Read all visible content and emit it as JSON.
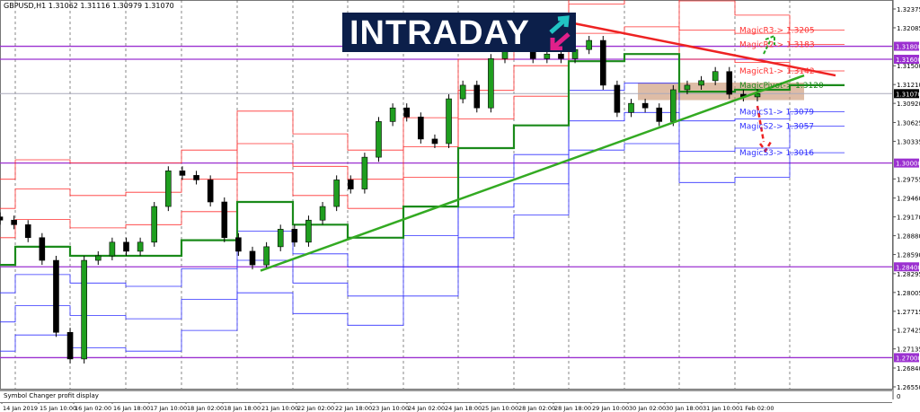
{
  "header": {
    "symbol_info": "GBPUSD,H1  1.31062 1.31116 1.30979 1.31070"
  },
  "logo": {
    "text": "INTRADAY"
  },
  "subwindow": {
    "label": "Symbol Changer profit display",
    "axis_value": "0"
  },
  "colors": {
    "resistance": "#ff3030",
    "support": "#3030ff",
    "pivot": "#1a8a1a",
    "key_level": "#9b30d0",
    "current_price": "#000000",
    "trend_up": "#33aa22",
    "trend_down": "#ee2222",
    "zone": "#c8906a",
    "logo_bg": "#0c1f4a"
  },
  "chart_data": {
    "type": "candlestick",
    "symbol": "GBPUSD",
    "timeframe": "H1",
    "ylim": [
      1.2655,
      1.32375
    ],
    "grid": false,
    "price_ticks": [
      "1.32375",
      "1.32085",
      "1.31500",
      "1.31210",
      "1.30920",
      "1.30625",
      "1.30335",
      "1.29755",
      "1.29460",
      "1.29170",
      "1.28880",
      "1.28590",
      "1.28295",
      "1.28005",
      "1.27715",
      "1.27425",
      "1.27135",
      "1.26840",
      "1.26550"
    ],
    "time_ticks": [
      "14 Jan 2019",
      "15 Jan 10:00",
      "16 Jan 02:00",
      "16 Jan 18:00",
      "17 Jan 10:00",
      "18 Jan 02:00",
      "18 Jan 18:00",
      "21 Jan 10:00",
      "22 Jan 02:00",
      "22 Jan 18:00",
      "23 Jan 10:00",
      "24 Jan 02:00",
      "24 Jan 18:00",
      "25 Jan 10:00",
      "28 Jan 02:00",
      "28 Jan 18:00",
      "29 Jan 10:00",
      "30 Jan 02:00",
      "30 Jan 18:00",
      "31 Jan 10:00",
      "1 Feb 02:00"
    ],
    "close": [
      1.2912,
      1.2905,
      1.2885,
      1.285,
      1.2739,
      1.2698,
      1.285,
      1.2857,
      1.2878,
      1.2864,
      1.2878,
      1.2933,
      1.2988,
      1.2981,
      1.2974,
      1.294,
      1.2885,
      1.2864,
      1.2843,
      1.2871,
      1.2898,
      1.2878,
      1.2912,
      1.2933,
      1.2974,
      1.296,
      1.3009,
      1.3064,
      1.3085,
      1.3071,
      1.3037,
      1.303,
      1.3099,
      1.312,
      1.3085,
      1.3161,
      1.3196,
      1.3182,
      1.3161,
      1.3168,
      1.3161,
      1.3175,
      1.3189,
      1.312,
      1.3078,
      1.3092,
      1.3085,
      1.3064,
      1.3113,
      1.312,
      1.3127,
      1.3141,
      1.3106,
      1.3102,
      1.3107
    ],
    "current_price": {
      "value": 1.3107,
      "label": "1.31070"
    },
    "key_levels": [
      {
        "value": 1.318,
        "label": "1.31800"
      },
      {
        "value": 1.316,
        "label": "1.31600"
      },
      {
        "value": 1.3,
        "label": "1.30000"
      },
      {
        "value": 1.284,
        "label": "1.28400"
      },
      {
        "value": 1.27,
        "label": "1.27000"
      }
    ],
    "daily_pivots": {
      "pivot": [
        1.2843,
        1.2871,
        1.2857,
        1.2857,
        1.2881,
        1.294,
        1.2905,
        1.2885,
        1.2933,
        1.3023,
        1.3058,
        1.3157,
        1.3168,
        1.311,
        1.3113,
        1.312
      ],
      "r1": [
        1.2885,
        1.2913,
        1.29,
        1.2905,
        1.2925,
        1.2985,
        1.295,
        1.293,
        1.2978,
        1.3068,
        1.3103,
        1.32,
        1.321,
        1.316,
        1.3155,
        1.3142
      ],
      "r2": [
        1.293,
        1.296,
        1.295,
        1.2955,
        1.2975,
        1.303,
        1.2995,
        1.2975,
        1.3025,
        1.3112,
        1.315,
        1.3245,
        1.3255,
        1.3205,
        1.32,
        1.3183
      ],
      "r3": [
        1.2975,
        1.3005,
        1.3,
        1.3,
        1.302,
        1.308,
        1.3045,
        1.302,
        1.307,
        1.316,
        1.3195,
        1.329,
        1.33,
        1.325,
        1.3228,
        1.3205
      ],
      "s1": [
        1.28,
        1.2828,
        1.2815,
        1.281,
        1.2837,
        1.2895,
        1.286,
        1.284,
        1.2888,
        1.2978,
        1.3013,
        1.3112,
        1.3123,
        1.3065,
        1.3068,
        1.3079
      ],
      "s2": [
        1.2755,
        1.278,
        1.2765,
        1.276,
        1.279,
        1.285,
        1.2815,
        1.2795,
        1.284,
        1.2932,
        1.2968,
        1.3065,
        1.3078,
        1.3018,
        1.3023,
        1.3057
      ],
      "s3": [
        1.271,
        1.2735,
        1.2715,
        1.271,
        1.2742,
        1.28,
        1.2768,
        1.275,
        1.2795,
        1.2885,
        1.292,
        1.302,
        1.303,
        1.297,
        1.2978,
        1.3016
      ]
    },
    "pivot_labels": {
      "r3": "MagicR3-> 1.3205",
      "r2": "MagicR2-> 1.3183",
      "r1": "MagicR1-> 1.3142",
      "pivot": "MagicPivot-> 1.3120",
      "s1": "MagicS1-> 1.3079",
      "s2": "MagicS2-> 1.3057",
      "s3": "MagicS3-> 1.3016"
    },
    "trendlines": [
      {
        "type": "support",
        "from": [
          1.2834
        ],
        "to": [
          1.3135
        ]
      },
      {
        "type": "resistance",
        "from": [
          1.3215
        ],
        "to": [
          1.3135
        ]
      }
    ],
    "zone": {
      "top": 1.3124,
      "bottom": 1.3097
    }
  }
}
